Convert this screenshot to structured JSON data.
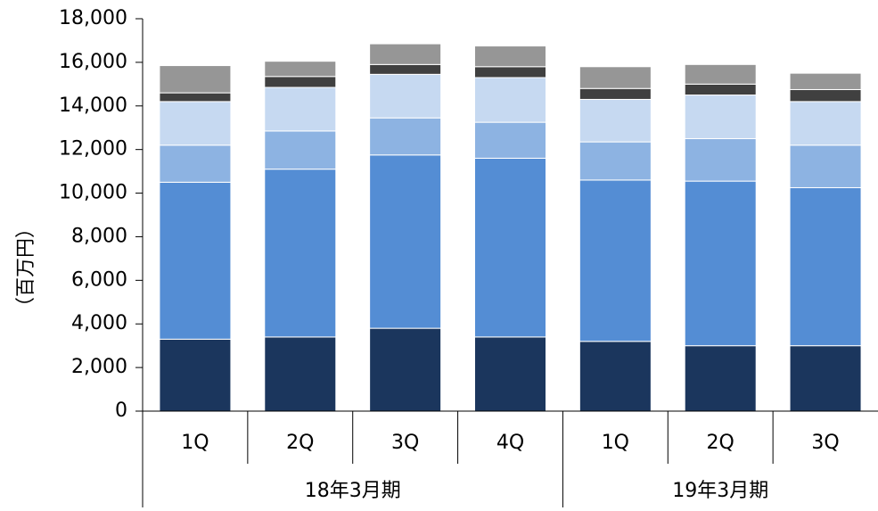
{
  "chart_data": {
    "type": "bar",
    "stacked": true,
    "ylabel": "（百万円）",
    "ylim": [
      0,
      18000
    ],
    "yticks": [
      0,
      2000,
      4000,
      6000,
      8000,
      10000,
      12000,
      14000,
      16000,
      18000
    ],
    "ytick_labels": [
      "0",
      "2,000",
      "4,000",
      "6,000",
      "8,000",
      "10,000",
      "12,000",
      "14,000",
      "16,000",
      "18,000"
    ],
    "categories": [
      "1Q",
      "2Q",
      "3Q",
      "4Q",
      "1Q",
      "2Q",
      "3Q"
    ],
    "groups": [
      {
        "label": "18年3月期",
        "start": 0,
        "end": 3
      },
      {
        "label": "19年3月期",
        "start": 4,
        "end": 6
      }
    ],
    "series": [
      {
        "color": "#1b365d",
        "values": [
          3300,
          3400,
          3800,
          3400,
          3200,
          3000,
          3000
        ]
      },
      {
        "color": "#548dd4",
        "values": [
          7200,
          7700,
          7950,
          8200,
          7400,
          7550,
          7250
        ]
      },
      {
        "color": "#8db3e2",
        "values": [
          1700,
          1750,
          1700,
          1650,
          1750,
          1950,
          1950
        ]
      },
      {
        "color": "#c6d9f1",
        "values": [
          2000,
          2000,
          2000,
          2050,
          1950,
          2000,
          2000
        ]
      },
      {
        "color": "#404040",
        "values": [
          400,
          500,
          450,
          500,
          500,
          500,
          550
        ]
      },
      {
        "color": "#969696",
        "values": [
          1250,
          700,
          950,
          950,
          1000,
          900,
          750
        ]
      }
    ]
  }
}
